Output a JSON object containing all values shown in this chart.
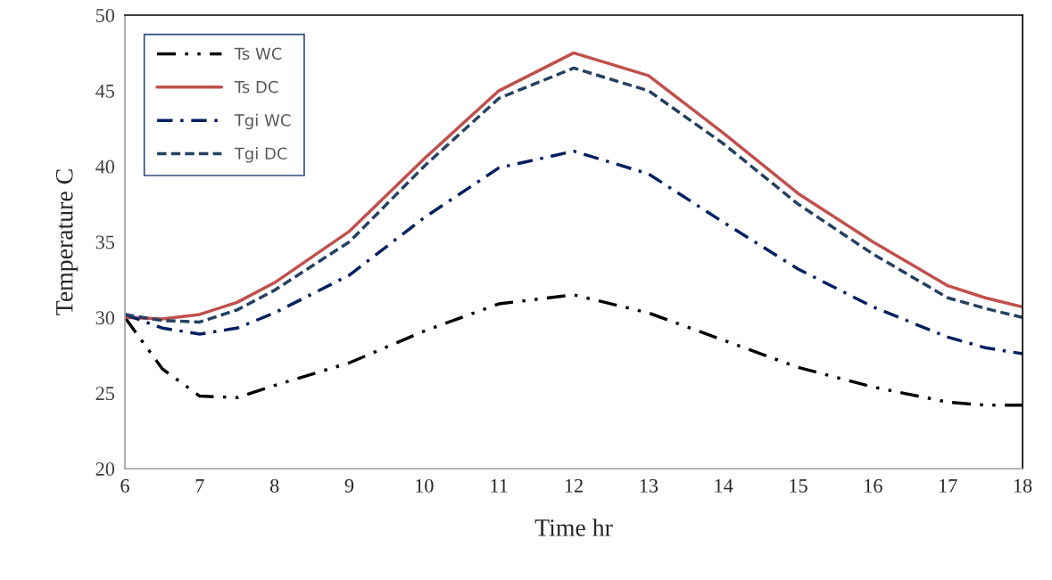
{
  "chart_data": {
    "type": "line",
    "xlabel": "Time hr",
    "ylabel": "Temperature C",
    "x": [
      6,
      6.5,
      7,
      7.5,
      8,
      9,
      10,
      11,
      12,
      13,
      14,
      15,
      16,
      17,
      17.5,
      18
    ],
    "series": [
      {
        "name": "Ts WC",
        "color": "#000000",
        "line_style": "dashdotdot",
        "values": [
          30.0,
          26.6,
          24.8,
          24.7,
          25.5,
          27.0,
          29.1,
          30.9,
          31.5,
          30.3,
          28.5,
          26.7,
          25.4,
          24.4,
          24.2,
          24.2
        ]
      },
      {
        "name": "Ts DC",
        "color": "#c0504d",
        "line_style": "solid",
        "values": [
          30.0,
          29.9,
          30.2,
          31.0,
          32.3,
          35.7,
          40.5,
          45.0,
          47.5,
          46.0,
          42.2,
          38.2,
          35.0,
          32.1,
          31.3,
          30.7
        ]
      },
      {
        "name": "Tgi WC",
        "color": "#002060",
        "line_style": "dashdot",
        "values": [
          30.2,
          29.3,
          28.9,
          29.3,
          30.3,
          32.8,
          36.6,
          39.9,
          41.0,
          39.5,
          36.3,
          33.2,
          30.7,
          28.7,
          28.0,
          27.6
        ]
      },
      {
        "name": "Tgi DC",
        "color": "#254061",
        "line_style": "dashed",
        "values": [
          30.2,
          29.8,
          29.7,
          30.5,
          31.8,
          35.0,
          40.0,
          44.5,
          46.5,
          45.0,
          41.5,
          37.5,
          34.2,
          31.3,
          30.6,
          30.0
        ]
      }
    ],
    "xlim": [
      6,
      18
    ],
    "xticks": [
      6,
      7,
      8,
      9,
      10,
      11,
      12,
      13,
      14,
      15,
      16,
      17,
      18
    ],
    "ylim": [
      20,
      50
    ],
    "yticks": [
      20,
      25,
      30,
      35,
      40,
      45,
      50
    ],
    "grid": false,
    "legend": "top left"
  }
}
